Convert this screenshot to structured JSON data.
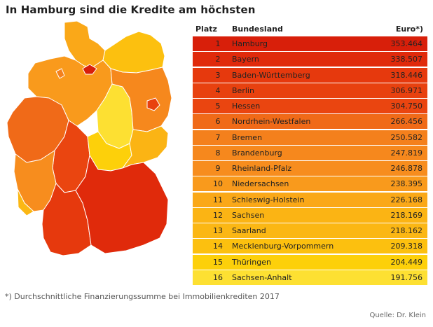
{
  "title": "In Hamburg sind die Kredite am höchsten",
  "table_header": {
    "rank": "Platz",
    "state": "Bundesland",
    "value": "Euro*)"
  },
  "footnote": "*) Durchschnittliche Finanzierungssumme bei Immobilienkrediten 2017",
  "source": "Quelle: Dr. Klein",
  "colors": {
    "level1": "#d81f0a",
    "level2": "#e63c0d",
    "level3": "#f0731a",
    "level4": "#f8961f",
    "level5": "#fbb015",
    "level6": "#fdcd0a",
    "level7": "#fde24a"
  },
  "chart_data": {
    "type": "table",
    "columns": [
      "Platz",
      "Bundesland",
      "Euro*)"
    ],
    "rows": [
      {
        "rank": "1",
        "state": "Hamburg",
        "value": "353.464",
        "color": "#d81f0a"
      },
      {
        "rank": "2",
        "state": "Bayern",
        "value": "338.507",
        "color": "#e02a0b"
      },
      {
        "rank": "3",
        "state": "Baden-Württemberg",
        "value": "318.446",
        "color": "#e6390d"
      },
      {
        "rank": "4",
        "state": "Berlin",
        "value": "306.971",
        "color": "#e8410f"
      },
      {
        "rank": "5",
        "state": "Hessen",
        "value": "304.750",
        "color": "#ea4510"
      },
      {
        "rank": "6",
        "state": "Nordrhein-Westfalen",
        "value": "266.456",
        "color": "#f06a18"
      },
      {
        "rank": "7",
        "state": "Bremen",
        "value": "250.582",
        "color": "#f4801c"
      },
      {
        "rank": "8",
        "state": "Brandenburg",
        "value": "247.819",
        "color": "#f6881d"
      },
      {
        "rank": "9",
        "state": "Rheinland-Pfalz",
        "value": "246.878",
        "color": "#f78d1e"
      },
      {
        "rank": "10",
        "state": "Niedersachsen",
        "value": "238.395",
        "color": "#f99a1c"
      },
      {
        "rank": "11",
        "state": "Schleswig-Holstein",
        "value": "226.168",
        "color": "#faa818"
      },
      {
        "rank": "12",
        "state": "Sachsen",
        "value": "218.169",
        "color": "#fbb414"
      },
      {
        "rank": "13",
        "state": "Saarland",
        "value": "218.162",
        "color": "#fbb714"
      },
      {
        "rank": "14",
        "state": "Mecklenburg-Vorpommern",
        "value": "209.318",
        "color": "#fcc00f"
      },
      {
        "rank": "15",
        "state": "Thüringen",
        "value": "204.449",
        "color": "#fdd00a"
      },
      {
        "rank": "16",
        "state": "Sachsen-Anhalt",
        "value": "191.756",
        "color": "#fde032"
      }
    ]
  }
}
